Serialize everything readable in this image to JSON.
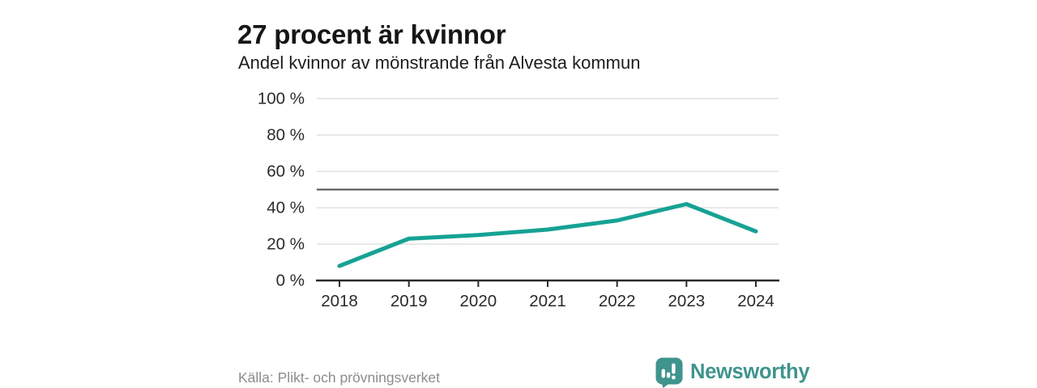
{
  "header": {
    "title": "27 procent är kvinnor",
    "subtitle": "Andel kvinnor av mönstrande från Alvesta kommun"
  },
  "footer": {
    "source": "Källa: Plikt- och prövningsverket",
    "brand": "Newsworthy"
  },
  "colors": {
    "line": "#16a294",
    "brand": "#3f948d",
    "grid": "#e0e0e0",
    "reference": "#4d4d4d",
    "axis": "#2b2b2b",
    "tick_text": "#2b2b2b",
    "source_text": "#8c8c8c"
  },
  "chart_data": {
    "type": "line",
    "title": "27 procent är kvinnor",
    "subtitle": "Andel kvinnor av mönstrande från Alvesta kommun",
    "categories": [
      "2018",
      "2019",
      "2020",
      "2021",
      "2022",
      "2023",
      "2024"
    ],
    "values": [
      8,
      23,
      25,
      28,
      33,
      42,
      27
    ],
    "series_name": "Andel kvinnor av mönstrande",
    "xlabel": "",
    "ylabel": "",
    "ylim": [
      0,
      100
    ],
    "yticks": [
      0,
      20,
      40,
      60,
      80,
      100
    ],
    "ytick_labels": [
      "0 %",
      "20 %",
      "40 %",
      "60 %",
      "80 %",
      "100 %"
    ],
    "reference_line": 50,
    "grid": true,
    "legend": false
  }
}
